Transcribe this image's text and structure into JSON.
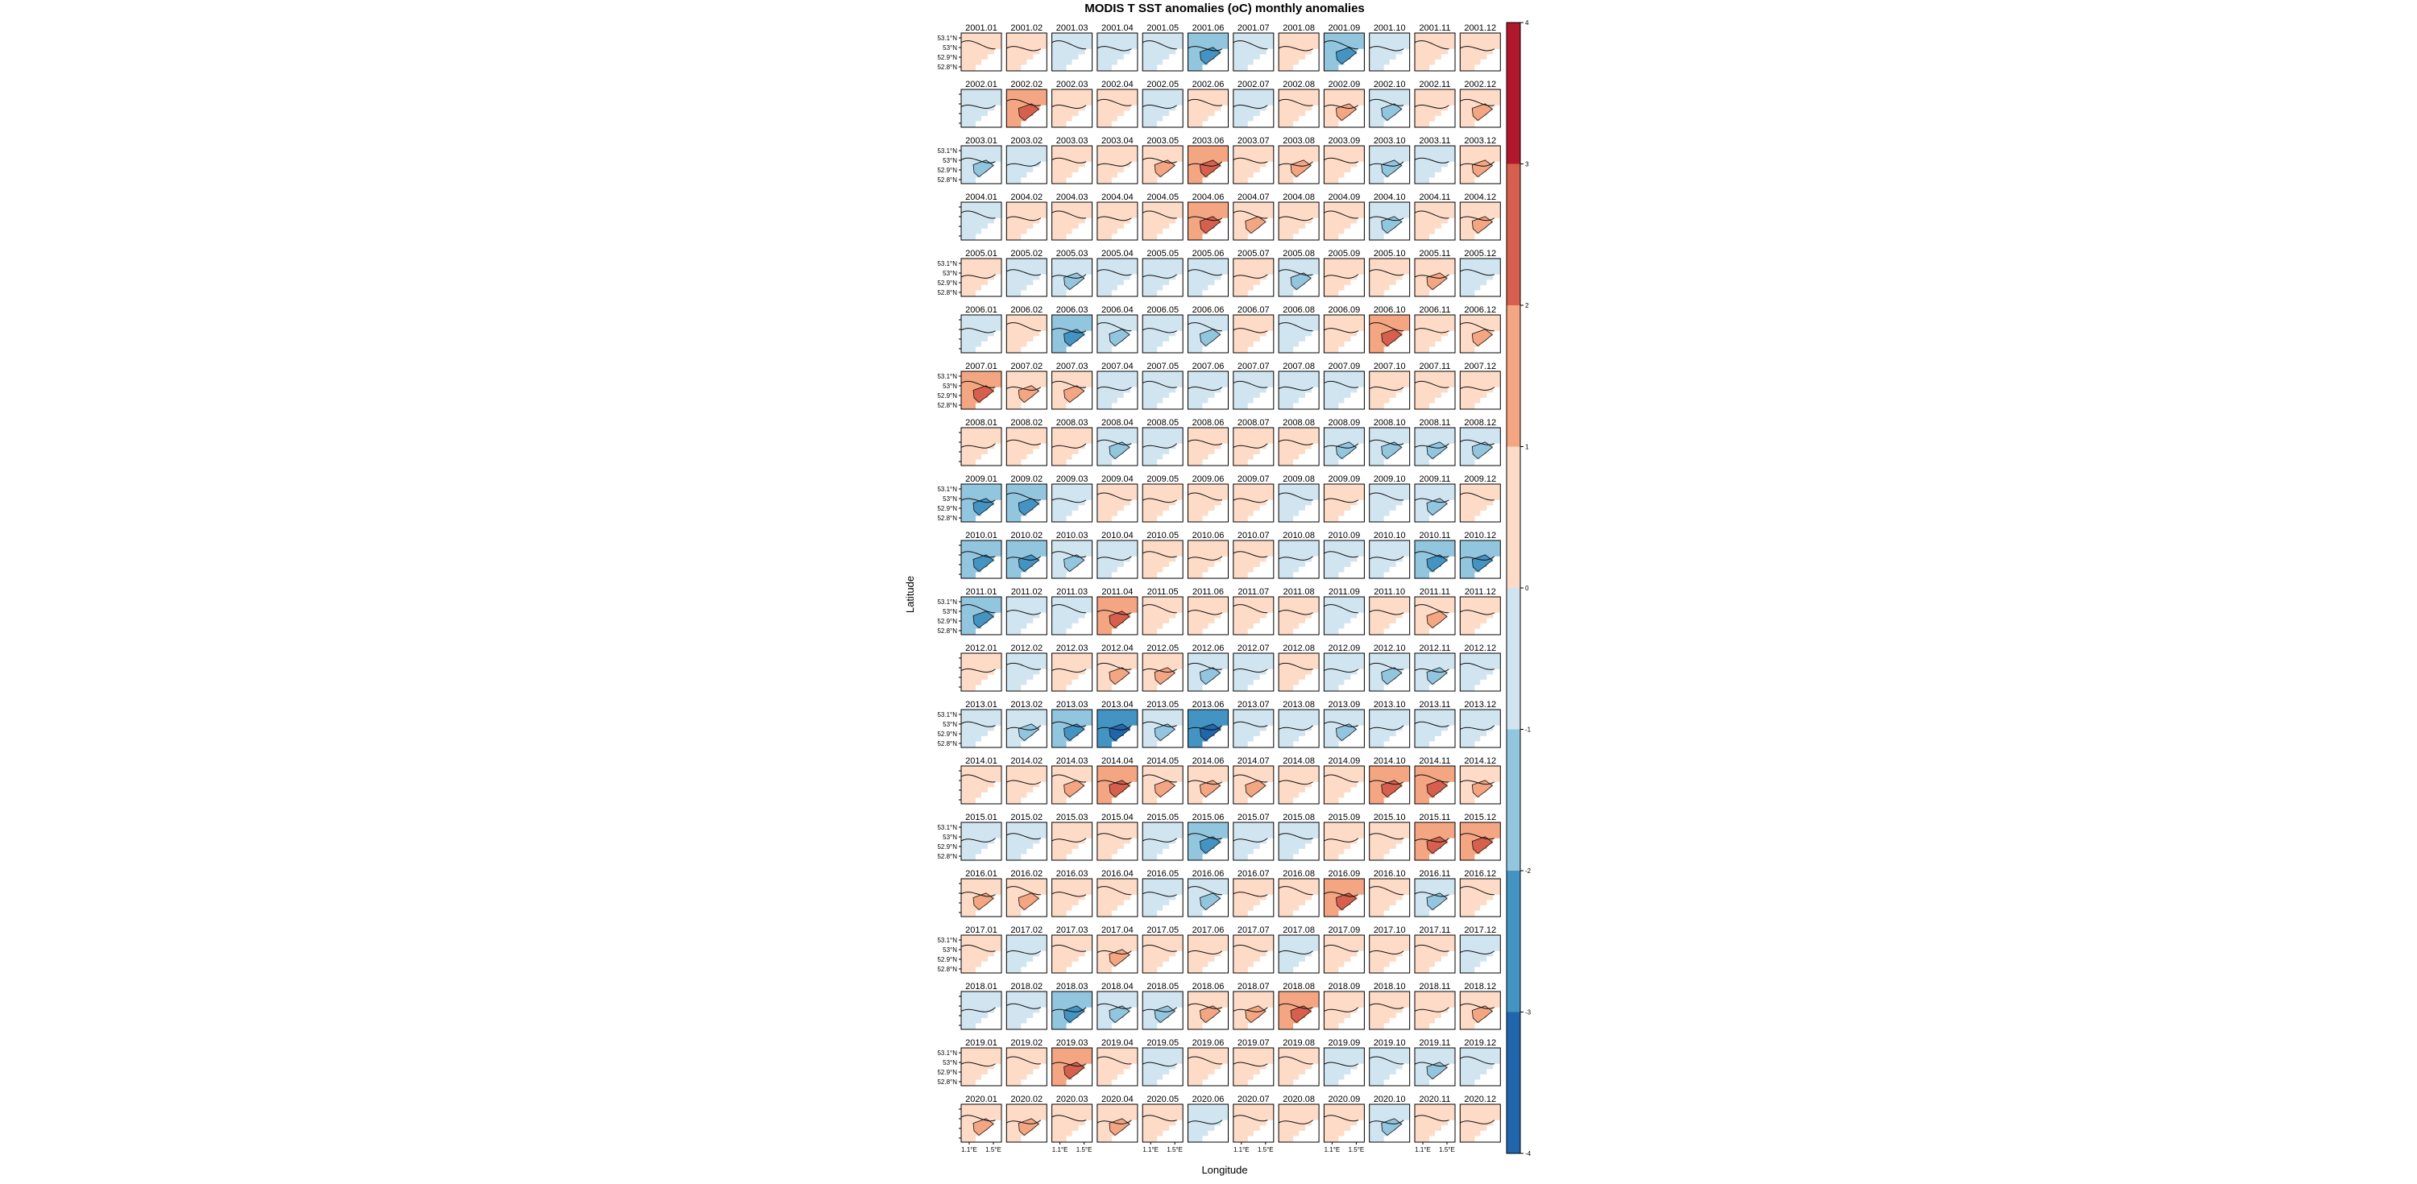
{
  "chart_data": {
    "type": "heatmap",
    "title": "MODIS T SST anomalies (oC) monthly anomalies",
    "xlabel": "Longitude",
    "ylabel": "Latitude",
    "x_tick_labels": [
      "1.1°E",
      "1.5°E"
    ],
    "y_tick_labels": [
      "53.1°N",
      "53°N",
      "52.9°N",
      "52.8°N"
    ],
    "years": [
      "2001",
      "2002",
      "2003",
      "2004",
      "2005",
      "2006",
      "2007",
      "2008",
      "2009",
      "2010",
      "2011",
      "2012",
      "2013",
      "2014",
      "2015",
      "2016",
      "2017",
      "2018",
      "2019",
      "2020"
    ],
    "months": [
      "01",
      "02",
      "03",
      "04",
      "05",
      "06",
      "07",
      "08",
      "09",
      "10",
      "11",
      "12"
    ],
    "colorbar": {
      "breaks": [
        -4,
        -3,
        -2,
        -1,
        0,
        1,
        2,
        3,
        4
      ],
      "colors": [
        "#2166ac",
        "#4393c3",
        "#92c5de",
        "#d1e5f0",
        "#fddbc7",
        "#f4a582",
        "#d6604d",
        "#b2182b"
      ],
      "tick_labels": [
        "4",
        "3",
        "2",
        "1",
        "0",
        "-1",
        "-2",
        "-3",
        "-4"
      ]
    },
    "monthly_anomaly": [
      [
        0.3,
        0.4,
        -0.2,
        -0.4,
        -0.5,
        -1.3,
        -0.3,
        0.2,
        -1.4,
        -0.4,
        0.5,
        0.3
      ],
      [
        -0.3,
        1.2,
        0.4,
        0.3,
        -0.4,
        0.4,
        -0.4,
        0.3,
        0.6,
        -0.6,
        0.3,
        0.6
      ],
      [
        -0.6,
        -0.3,
        0.3,
        0.5,
        0.9,
        1.2,
        0.5,
        0.8,
        0.4,
        -0.8,
        -0.5,
        0.9
      ],
      [
        -0.2,
        0.4,
        0.2,
        0.3,
        0.2,
        1.0,
        0.6,
        0.5,
        0.3,
        -0.6,
        0.4,
        0.6
      ],
      [
        0.3,
        -0.3,
        -0.6,
        -0.4,
        -0.4,
        -0.3,
        0.4,
        -1.0,
        0.3,
        0.4,
        0.9,
        -0.3
      ],
      [
        -0.2,
        0.3,
        -1.2,
        -0.7,
        -0.3,
        -0.7,
        0.3,
        -0.4,
        0.3,
        1.6,
        0.3,
        0.7
      ],
      [
        1.3,
        0.7,
        0.6,
        -0.3,
        -0.3,
        -0.2,
        -0.2,
        -0.3,
        -0.2,
        0.5,
        0.3,
        0.4
      ],
      [
        0.3,
        0.4,
        0.5,
        -0.6,
        -0.2,
        0.3,
        0.3,
        0.2,
        -0.9,
        -0.8,
        -1.0,
        -0.8
      ],
      [
        -1.2,
        -1.1,
        -0.5,
        0.4,
        0.3,
        0.3,
        0.3,
        -0.3,
        0.2,
        -0.3,
        -0.6,
        0.3
      ],
      [
        -1.3,
        -1.2,
        -0.8,
        -0.5,
        0.3,
        0.4,
        0.4,
        -0.2,
        -0.3,
        -0.4,
        -1.1,
        -1.8
      ],
      [
        -1.2,
        -0.4,
        -0.3,
        1.1,
        0.4,
        0.5,
        0.3,
        0.3,
        -0.3,
        0.4,
        0.6,
        0.2
      ],
      [
        0.4,
        -0.3,
        0.3,
        0.7,
        0.6,
        -0.6,
        -0.4,
        0.3,
        -0.3,
        -1.0,
        -0.6,
        -0.4
      ],
      [
        -0.4,
        -1.0,
        -1.3,
        -2.6,
        -0.8,
        -2.1,
        -0.3,
        -0.2,
        -0.6,
        -0.3,
        -0.5,
        -0.2
      ],
      [
        0.4,
        0.5,
        0.9,
        1.1,
        0.9,
        0.9,
        0.7,
        0.3,
        0.4,
        1.1,
        1.0,
        0.6
      ],
      [
        -0.3,
        -0.3,
        0.4,
        0.5,
        -0.3,
        -1.1,
        -0.3,
        -0.3,
        0.3,
        0.4,
        1.0,
        1.1
      ],
      [
        0.9,
        0.9,
        0.4,
        0.3,
        -0.5,
        -0.6,
        0.4,
        0.5,
        1.2,
        0.3,
        -0.7,
        0.3
      ],
      [
        0.3,
        -0.2,
        0.4,
        0.8,
        0.3,
        0.5,
        0.3,
        -0.2,
        0.3,
        0.2,
        0.3,
        -0.3
      ],
      [
        -0.3,
        -0.3,
        -1.2,
        -0.7,
        -0.6,
        0.6,
        0.6,
        1.2,
        0.3,
        0.5,
        0.4,
        0.6
      ],
      [
        0.3,
        0.4,
        1.1,
        0.5,
        -0.3,
        0.4,
        0.5,
        0.4,
        -0.3,
        -0.3,
        -0.8,
        -0.3
      ],
      [
        0.9,
        0.7,
        0.5,
        0.6,
        0.3,
        -0.3,
        0.3,
        0.4,
        0.5,
        -1.0,
        0.4,
        0.3
      ]
    ]
  }
}
